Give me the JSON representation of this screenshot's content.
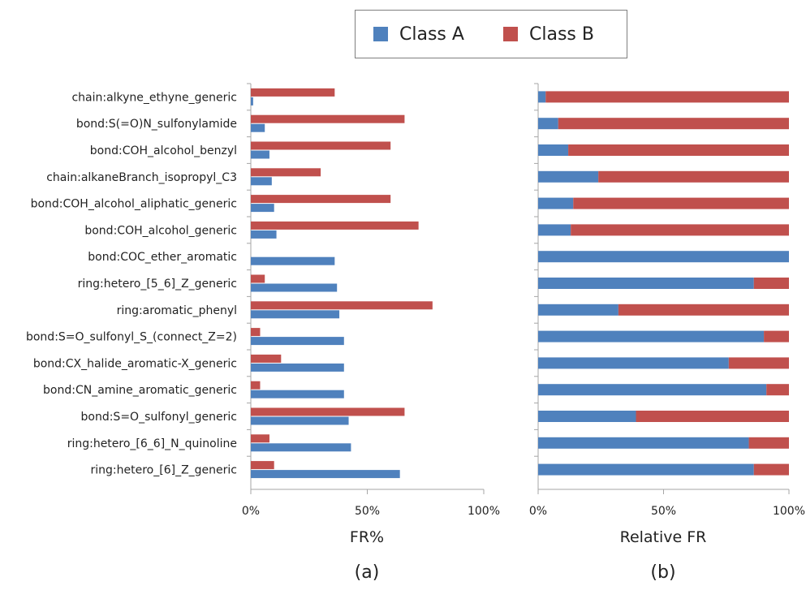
{
  "legend": {
    "items": [
      {
        "label": "Class A",
        "color": "#4f81bd"
      },
      {
        "label": "Class B",
        "color": "#c0504d"
      }
    ]
  },
  "colors": {
    "class_a": "#4f81bd",
    "class_b": "#c0504d",
    "axis": "#a6a6a6"
  },
  "chart_data": [
    {
      "type": "bar",
      "orientation": "horizontal",
      "panel_label": "(a)",
      "xlabel": "FR%",
      "xlim": [
        0,
        100
      ],
      "x_ticks": [
        "0%",
        "50%",
        "100%"
      ],
      "grid": false,
      "legend_position": "top",
      "categories": [
        "chain:alkyne_ethyne_generic",
        "bond:S(=O)N_sulfonylamide",
        "bond:COH_alcohol_benzyl",
        "chain:alkaneBranch_isopropyl_C3",
        "bond:COH_alcohol_aliphatic_generic",
        "bond:COH_alcohol_generic",
        "bond:COC_ether_aromatic",
        "ring:hetero_[5_6]_Z_generic",
        "ring:aromatic_phenyl",
        "bond:S=O_sulfonyl_S_(connect_Z=2)",
        "bond:CX_halide_aromatic-X_generic",
        "bond:CN_amine_aromatic_generic",
        "bond:S=O_sulfonyl_generic",
        "ring:hetero_[6_6]_N_quinoline",
        "ring:hetero_[6]_Z_generic"
      ],
      "series": [
        {
          "name": "Class A",
          "values": [
            1,
            6,
            8,
            9,
            10,
            11,
            36,
            37,
            38,
            40,
            40,
            40,
            42,
            43,
            64
          ]
        },
        {
          "name": "Class B",
          "values": [
            36,
            66,
            60,
            30,
            60,
            72,
            0,
            6,
            78,
            4,
            13,
            4,
            66,
            8,
            10
          ]
        }
      ]
    },
    {
      "type": "bar",
      "orientation": "horizontal",
      "stacked": true,
      "panel_label": "(b)",
      "xlabel": "Relative FR",
      "xlim": [
        0,
        100
      ],
      "x_ticks": [
        "0%",
        "50%",
        "100%"
      ],
      "grid": false,
      "categories": [
        "chain:alkyne_ethyne_generic",
        "bond:S(=O)N_sulfonylamide",
        "bond:COH_alcohol_benzyl",
        "chain:alkaneBranch_isopropyl_C3",
        "bond:COH_alcohol_aliphatic_generic",
        "bond:COH_alcohol_generic",
        "bond:COC_ether_aromatic",
        "ring:hetero_[5_6]_Z_generic",
        "ring:aromatic_phenyl",
        "bond:S=O_sulfonyl_S_(connect_Z=2)",
        "bond:CX_halide_aromatic-X_generic",
        "bond:CN_amine_aromatic_generic",
        "bond:S=O_sulfonyl_generic",
        "ring:hetero_[6_6]_N_quinoline",
        "ring:hetero_[6]_Z_generic"
      ],
      "series": [
        {
          "name": "Class A",
          "values": [
            3,
            8,
            12,
            24,
            14,
            13,
            100,
            86,
            32,
            90,
            76,
            91,
            39,
            84,
            86
          ]
        },
        {
          "name": "Class B",
          "values": [
            97,
            92,
            88,
            76,
            86,
            87,
            0,
            14,
            68,
            10,
            24,
            9,
            61,
            16,
            14
          ]
        }
      ]
    }
  ]
}
